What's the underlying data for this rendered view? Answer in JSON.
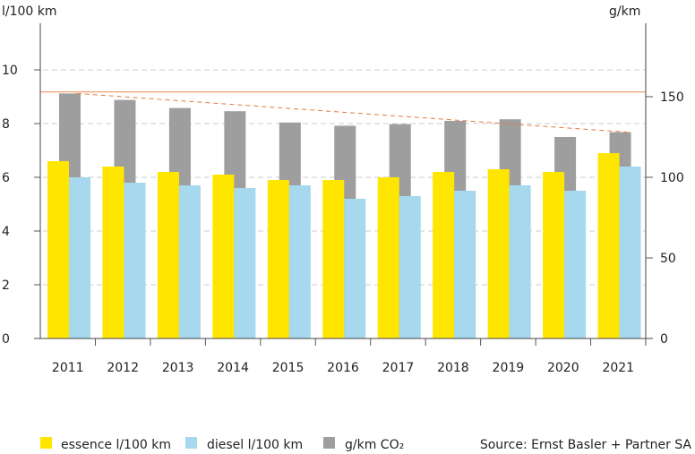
{
  "chart_data": {
    "type": "bar",
    "categories": [
      "2011",
      "2012",
      "2013",
      "2014",
      "2015",
      "2016",
      "2017",
      "2018",
      "2019",
      "2020",
      "2021"
    ],
    "series": [
      {
        "name": "essence l/100 km",
        "axis": "left",
        "color": "#ffe600",
        "values": [
          6.6,
          6.4,
          6.2,
          6.1,
          5.9,
          5.9,
          6.0,
          6.2,
          6.3,
          6.2,
          6.9
        ]
      },
      {
        "name": "diesel l/100 km",
        "axis": "left",
        "color": "#a6d8ee",
        "values": [
          6.0,
          5.8,
          5.7,
          5.6,
          5.7,
          5.2,
          5.3,
          5.5,
          5.7,
          5.5,
          6.4
        ]
      },
      {
        "name": "g/km CO₂",
        "axis": "right",
        "color": "#9e9e9e",
        "values": [
          152,
          148,
          143,
          141,
          134,
          132,
          133,
          135,
          136,
          125,
          128
        ]
      }
    ],
    "ylabel_left": "l/100 km",
    "ylabel_right": "g/km",
    "ylim_left": [
      0,
      12
    ],
    "ylim_right": [
      0,
      200
    ],
    "yticks_left": [
      0,
      2,
      4,
      6,
      8,
      10
    ],
    "yticks_right": [
      0,
      50,
      100,
      150
    ],
    "reference_line": {
      "axis": "right",
      "value": 153,
      "color": "#f0a070"
    },
    "trend_line": {
      "axis": "right",
      "from_value": 152,
      "to_value": 128,
      "color": "#e07a40"
    },
    "grid": "horizontal dashed",
    "legend_position": "bottom",
    "source": "Source: Ernst Basler + Partner SA"
  }
}
